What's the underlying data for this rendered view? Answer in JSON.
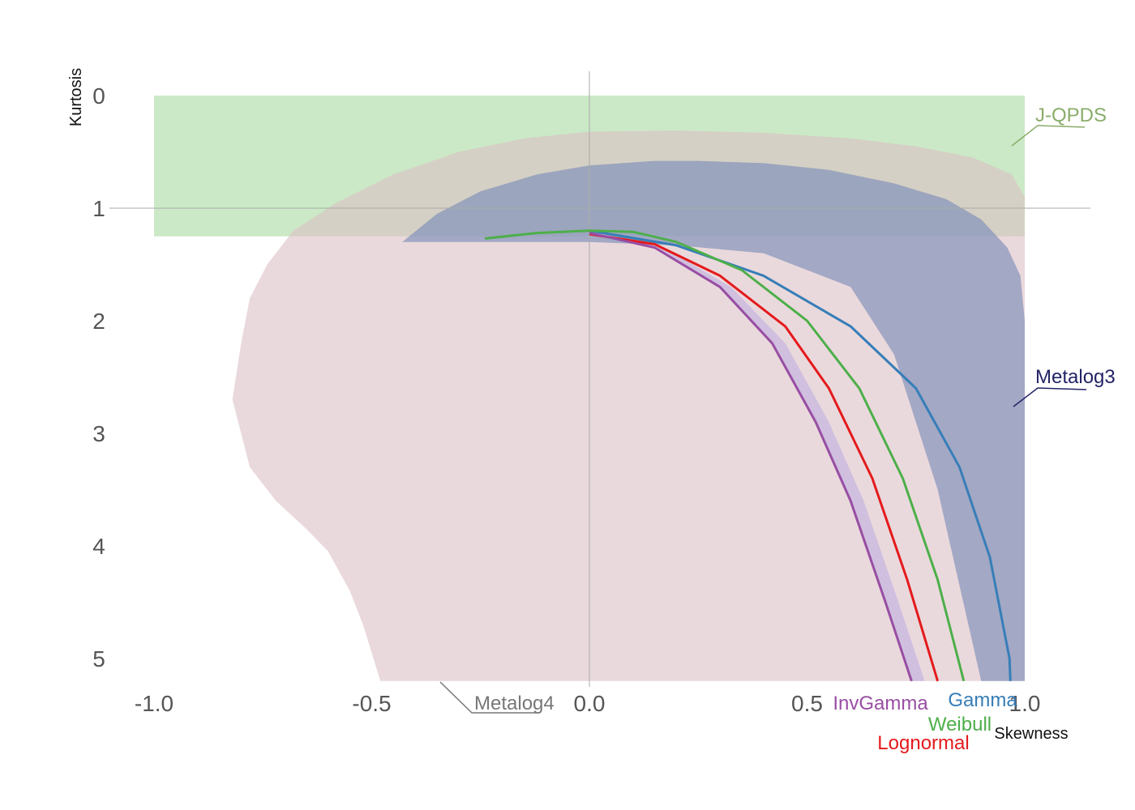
{
  "chart_data": {
    "type": "area",
    "title": "",
    "xlabel": "Skewness",
    "ylabel": "Kurtosis",
    "xlim": [
      -1.0,
      1.0
    ],
    "ylim": [
      5,
      0
    ],
    "y_axis_inverted": true,
    "x_ticks": [
      "-1.0",
      "-0.5",
      "0.0",
      "0.5",
      "1.0"
    ],
    "y_ticks": [
      "0",
      "1",
      "2",
      "3",
      "4",
      "5"
    ],
    "reference_lines": {
      "x": 0,
      "y": 1
    },
    "regions": [
      {
        "name": "J-QPDS",
        "color": "#a8dba0",
        "label_color": "#8aac6a",
        "points": [
          [
            -1.0,
            0.0
          ],
          [
            1.0,
            0.0
          ],
          [
            1.0,
            1.25
          ],
          [
            -1.0,
            1.25
          ]
        ]
      },
      {
        "name": "Metalog4",
        "color": "#dcc0c4",
        "label_color": "#777777",
        "points": [
          [
            -0.48,
            5.2
          ],
          [
            -0.52,
            4.7
          ],
          [
            -0.55,
            4.4
          ],
          [
            -0.6,
            4.05
          ],
          [
            -0.65,
            3.85
          ],
          [
            -0.72,
            3.6
          ],
          [
            -0.78,
            3.3
          ],
          [
            -0.8,
            3.0
          ],
          [
            -0.82,
            2.7
          ],
          [
            -0.8,
            2.2
          ],
          [
            -0.78,
            1.8
          ],
          [
            -0.74,
            1.5
          ],
          [
            -0.68,
            1.2
          ],
          [
            -0.58,
            0.95
          ],
          [
            -0.45,
            0.7
          ],
          [
            -0.3,
            0.5
          ],
          [
            -0.15,
            0.38
          ],
          [
            0.0,
            0.32
          ],
          [
            0.2,
            0.31
          ],
          [
            0.4,
            0.33
          ],
          [
            0.6,
            0.38
          ],
          [
            0.75,
            0.45
          ],
          [
            0.88,
            0.55
          ],
          [
            0.97,
            0.7
          ],
          [
            1.0,
            0.9
          ],
          [
            1.0,
            5.2
          ]
        ]
      },
      {
        "name": "Metalog3",
        "color": "#7d8eb8",
        "label_color": "#232366",
        "points": [
          [
            -0.43,
            1.3
          ],
          [
            -0.35,
            1.05
          ],
          [
            -0.25,
            0.85
          ],
          [
            -0.12,
            0.7
          ],
          [
            0.0,
            0.62
          ],
          [
            0.15,
            0.58
          ],
          [
            0.25,
            0.58
          ],
          [
            0.4,
            0.6
          ],
          [
            0.55,
            0.66
          ],
          [
            0.7,
            0.78
          ],
          [
            0.82,
            0.92
          ],
          [
            0.9,
            1.1
          ],
          [
            0.96,
            1.35
          ],
          [
            0.99,
            1.6
          ],
          [
            1.0,
            2.0
          ],
          [
            1.0,
            5.2
          ],
          [
            0.9,
            5.2
          ],
          [
            0.8,
            3.5
          ],
          [
            0.7,
            2.3
          ],
          [
            0.6,
            1.7
          ],
          [
            0.4,
            1.4
          ],
          [
            0.2,
            1.33
          ],
          [
            0.0,
            1.3
          ],
          [
            -0.43,
            1.3
          ]
        ]
      }
    ],
    "series": [
      {
        "name": "Gamma",
        "color": "#377eb8",
        "points": [
          [
            0.0,
            1.2
          ],
          [
            0.2,
            1.33
          ],
          [
            0.4,
            1.6
          ],
          [
            0.6,
            2.05
          ],
          [
            0.75,
            2.6
          ],
          [
            0.85,
            3.3
          ],
          [
            0.92,
            4.1
          ],
          [
            0.965,
            5.0
          ],
          [
            0.967,
            5.2
          ]
        ]
      },
      {
        "name": "Weibull",
        "color": "#4daf4a",
        "points": [
          [
            -0.24,
            1.27
          ],
          [
            -0.12,
            1.22
          ],
          [
            0.0,
            1.2
          ],
          [
            0.1,
            1.21
          ],
          [
            0.2,
            1.3
          ],
          [
            0.35,
            1.55
          ],
          [
            0.5,
            2.0
          ],
          [
            0.62,
            2.6
          ],
          [
            0.72,
            3.4
          ],
          [
            0.8,
            4.3
          ],
          [
            0.86,
            5.2
          ]
        ]
      },
      {
        "name": "Lognormal",
        "color": "#e41a1c",
        "points": [
          [
            0.0,
            1.23
          ],
          [
            0.15,
            1.32
          ],
          [
            0.3,
            1.6
          ],
          [
            0.45,
            2.05
          ],
          [
            0.55,
            2.6
          ],
          [
            0.65,
            3.4
          ],
          [
            0.73,
            4.3
          ],
          [
            0.8,
            5.2
          ]
        ]
      },
      {
        "name": "InvGamma",
        "color": "#984ea3",
        "points": [
          [
            0.0,
            1.22
          ],
          [
            0.15,
            1.35
          ],
          [
            0.3,
            1.7
          ],
          [
            0.42,
            2.2
          ],
          [
            0.52,
            2.9
          ],
          [
            0.6,
            3.6
          ],
          [
            0.68,
            4.5
          ],
          [
            0.74,
            5.2
          ]
        ]
      }
    ]
  }
}
